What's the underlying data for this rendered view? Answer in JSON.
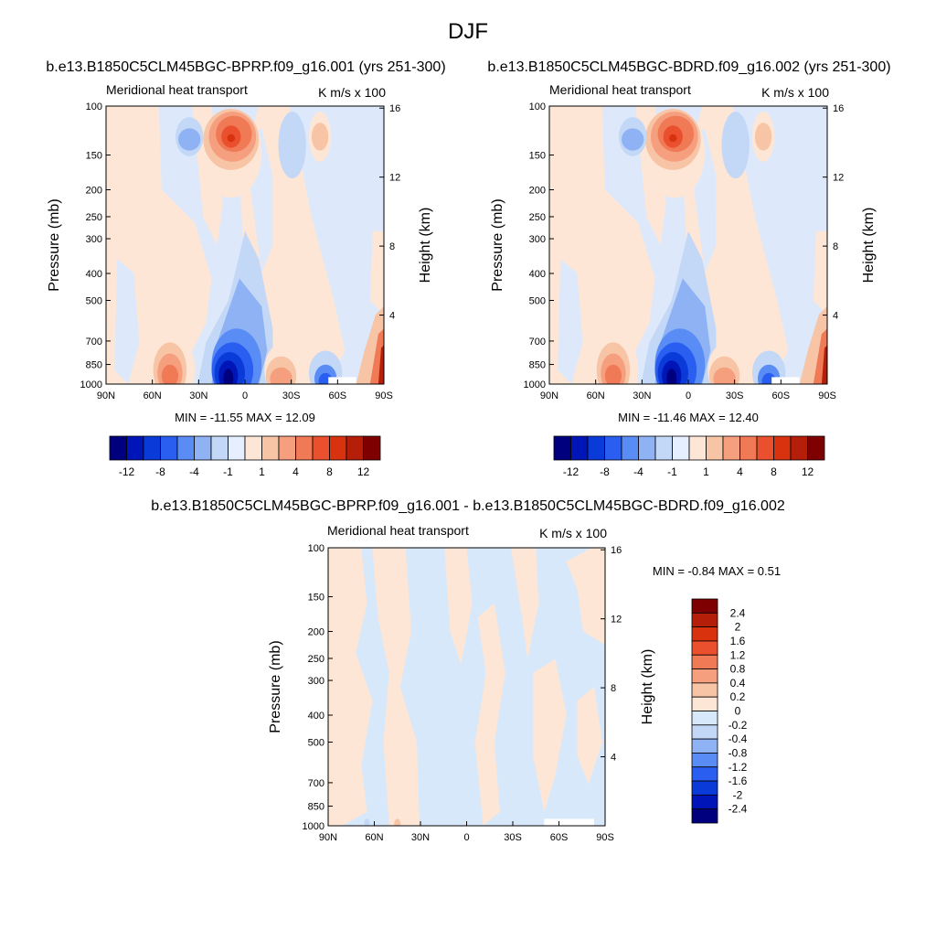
{
  "page": {
    "title": "DJF"
  },
  "palettes": {
    "main": [
      "#00007f",
      "#0015b7",
      "#0a3ad8",
      "#2a5ef0",
      "#5a8cf5",
      "#8fb2f4",
      "#c3d7f6",
      "#e6efff",
      "#fde6d6",
      "#f8c4a6",
      "#f59f7e",
      "#f07a56",
      "#ea4f2e",
      "#d8320f",
      "#b51f0a",
      "#7f0000"
    ],
    "diff": [
      "#00007f",
      "#0015b7",
      "#0a3ad8",
      "#2a5ef0",
      "#5a8cf5",
      "#8fb2f4",
      "#c3d7f6",
      "#d8e8fb",
      "#fde6d6",
      "#f8c4a6",
      "#f59f7e",
      "#f07a56",
      "#ea4f2e",
      "#d8320f",
      "#b51f0a",
      "#7f0000"
    ]
  },
  "chart_data": [
    {
      "type": "heatmap",
      "title": "b.e13.B1850C5CLM45BGC-BPRP.f09_g16.001 (yrs 251-300)",
      "left_label": "Meridional heat transport",
      "units_label": "K m/s x 100",
      "ylabel": "Pressure (mb)",
      "y2label": "Height (km)",
      "x_ticks": [
        "90N",
        "60N",
        "30N",
        "0",
        "30S",
        "60S",
        "90S"
      ],
      "y_ticks": [
        "100",
        "150",
        "200",
        "250",
        "300",
        "400",
        "500",
        "700",
        "850",
        "1000"
      ],
      "y2_ticks": [
        "16",
        "12",
        "8",
        "4"
      ],
      "stats": "MIN = -11.55  MAX =  12.09",
      "min": -11.55,
      "max": 12.09,
      "colorbar_labels": [
        "-12",
        "-8",
        "-4",
        "-1",
        "1",
        "4",
        "8",
        "12"
      ]
    },
    {
      "type": "heatmap",
      "title": "b.e13.B1850C5CLM45BGC-BDRD.f09_g16.002 (yrs 251-300)",
      "left_label": "Meridional heat transport",
      "units_label": "K m/s x 100",
      "ylabel": "Pressure (mb)",
      "y2label": "Height (km)",
      "x_ticks": [
        "90N",
        "60N",
        "30N",
        "0",
        "30S",
        "60S",
        "90S"
      ],
      "y_ticks": [
        "100",
        "150",
        "200",
        "250",
        "300",
        "400",
        "500",
        "700",
        "850",
        "1000"
      ],
      "y2_ticks": [
        "16",
        "12",
        "8",
        "4"
      ],
      "stats": "MIN = -11.46  MAX =  12.40",
      "min": -11.46,
      "max": 12.4,
      "colorbar_labels": [
        "-12",
        "-8",
        "-4",
        "-1",
        "1",
        "4",
        "8",
        "12"
      ]
    },
    {
      "type": "heatmap",
      "title": "b.e13.B1850C5CLM45BGC-BPRP.f09_g16.001 - b.e13.B1850C5CLM45BGC-BDRD.f09_g16.002",
      "left_label": "Meridional heat transport",
      "units_label": "K m/s x 100",
      "ylabel": "Pressure (mb)",
      "y2label": "Height (km)",
      "x_ticks": [
        "90N",
        "60N",
        "30N",
        "0",
        "30S",
        "60S",
        "90S"
      ],
      "y_ticks": [
        "100",
        "150",
        "200",
        "250",
        "300",
        "400",
        "500",
        "700",
        "850",
        "1000"
      ],
      "y2_ticks": [
        "16",
        "12",
        "8",
        "4"
      ],
      "stats": "MIN =  -0.84  MAX =   0.51",
      "min": -0.84,
      "max": 0.51,
      "colorbar_labels": [
        "2.4",
        "2",
        "1.6",
        "1.2",
        "0.8",
        "0.4",
        "0.2",
        "0",
        "-0.2",
        "-0.4",
        "-0.8",
        "-1.2",
        "-1.6",
        "-2",
        "-2.4"
      ]
    }
  ]
}
